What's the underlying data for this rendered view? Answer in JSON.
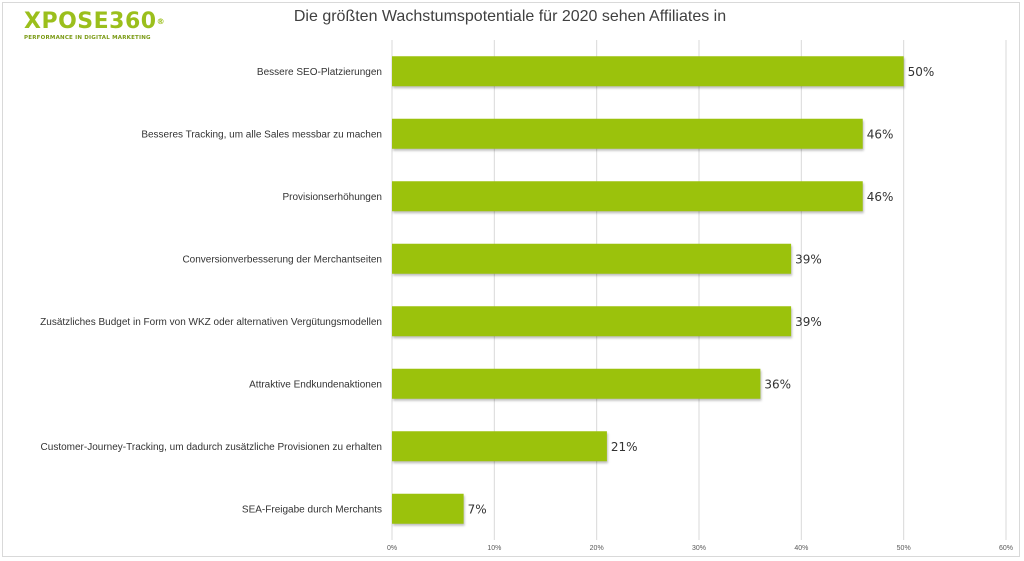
{
  "logo": {
    "name": "XPOSE360",
    "registered": "®",
    "tagline": "PERFORMANCE IN DIGITAL MARKETING"
  },
  "chart_data": {
    "type": "bar",
    "orientation": "horizontal",
    "title": "Die größten Wachstumspotentiale für 2020 sehen Affiliates in",
    "categories": [
      "Bessere SEO-Platzierungen",
      "Besseres Tracking, um alle Sales messbar zu machen",
      "Provisionserhöhungen",
      "Conversionverbesserung der Merchantseiten",
      "Zusätzliches Budget in Form von WKZ oder alternativen Vergütungsmodellen",
      "Attraktive Endkundenaktionen",
      "Customer-Journey-Tracking, um dadurch zusätzliche Provisionen zu erhalten",
      "SEA-Freigabe durch Merchants"
    ],
    "values": [
      50,
      46,
      46,
      39,
      39,
      36,
      21,
      7
    ],
    "value_labels": [
      "50%",
      "46%",
      "46%",
      "39%",
      "39%",
      "36%",
      "21%",
      "7%"
    ],
    "xlim": [
      0,
      60
    ],
    "ticks": [
      0,
      10,
      20,
      30,
      40,
      50,
      60
    ],
    "tick_labels": [
      "0%",
      "10%",
      "20%",
      "30%",
      "40%",
      "50%",
      "60%"
    ],
    "grid": true,
    "legend": "none",
    "bar_color": "#9bc20c"
  }
}
